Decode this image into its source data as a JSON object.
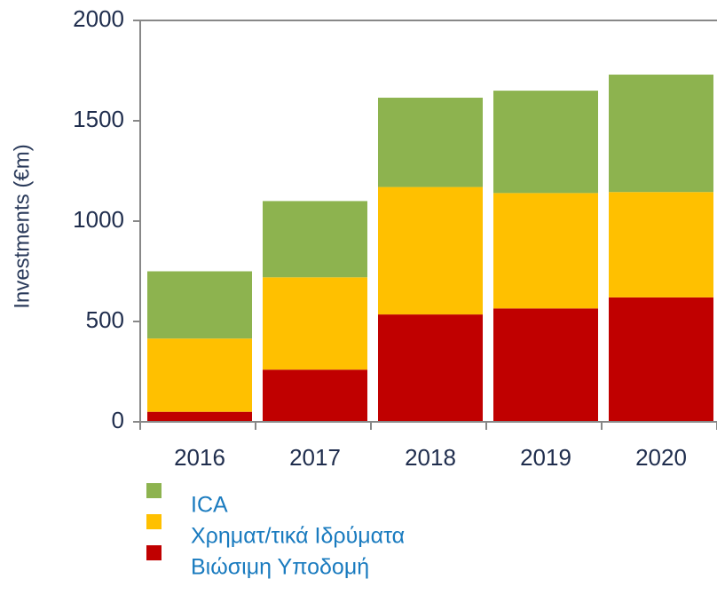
{
  "chart_data": {
    "type": "stacked_bar",
    "ylabel": "Investments (€m)",
    "categories": [
      "2016",
      "2017",
      "2018",
      "2019",
      "2020"
    ],
    "series": [
      {
        "name": "Βιώσιμη Υποδομή",
        "color": "#c00000",
        "values": [
          50,
          260,
          535,
          565,
          620
        ]
      },
      {
        "name": "Χρηματ/τικά Ιδρύματα",
        "color": "#ffc000",
        "values": [
          365,
          460,
          635,
          575,
          525
        ]
      },
      {
        "name": "ICA",
        "color": "#8db34f",
        "values": [
          335,
          380,
          445,
          510,
          585
        ]
      }
    ],
    "ylim": [
      0,
      2000
    ],
    "yticks": [
      0,
      500,
      1000,
      1500,
      2000
    ]
  }
}
